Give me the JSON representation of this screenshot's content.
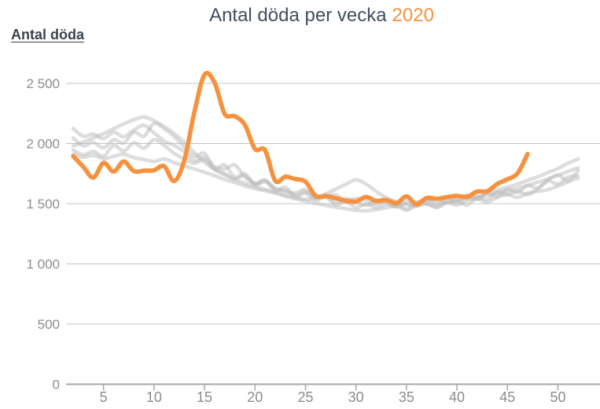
{
  "header": {
    "title_prefix": "Antal döda per vecka",
    "title_year": "2020"
  },
  "colors": {
    "accent_orange": "#F6913E",
    "reference_gray": "#BBBBBB",
    "title_text": "#424E5C",
    "axis_text": "#8C8C8C",
    "gridline": "#C4C4C4",
    "axis_line": "#A8A8A8",
    "background": "#FFFFFF"
  },
  "chart_data": {
    "type": "line",
    "title": "Antal döda per vecka 2020",
    "ylabel": "Antal döda",
    "xlabel": "",
    "legend": "none",
    "grid": "horizontal",
    "x_unit": "vecka",
    "xlim": [
      1,
      53
    ],
    "ylim": [
      0,
      2650
    ],
    "x_ticks": [
      5,
      10,
      15,
      20,
      25,
      30,
      35,
      40,
      45,
      50
    ],
    "y_ticks": [
      {
        "value": 0,
        "label": "0"
      },
      {
        "value": 500,
        "label": "500"
      },
      {
        "value": 1000,
        "label": "1 000"
      },
      {
        "value": 1500,
        "label": "1 500"
      },
      {
        "value": 2000,
        "label": "2 000"
      },
      {
        "value": 2500,
        "label": "2 500"
      }
    ],
    "series": [
      {
        "name": "reference-year-a",
        "role": "reference",
        "color": "#BBBBBB",
        "start_week": 2,
        "values": [
          2125,
          2060,
          2078,
          2041,
          2094,
          2057,
          2112,
          2151,
          2089,
          2021,
          1984,
          1931,
          1856,
          1887,
          1807,
          1789,
          1821,
          1722,
          1671,
          1697,
          1631,
          1608,
          1572,
          1601,
          1560,
          1563,
          1574,
          1526,
          1543,
          1529,
          1497,
          1531,
          1512,
          1457,
          1514,
          1520,
          1543,
          1510,
          1534,
          1542,
          1560,
          1535,
          1596,
          1575,
          1604,
          1575,
          1624,
          1697,
          1738,
          1692,
          1775
        ]
      },
      {
        "name": "reference-year-b",
        "role": "reference",
        "color": "#BBBBBB",
        "start_week": 2,
        "values": [
          1946,
          1908,
          1934,
          1895,
          1984,
          1938,
          2006,
          1962,
          2032,
          1985,
          1919,
          1872,
          1836,
          1862,
          1785,
          1752,
          1707,
          1731,
          1659,
          1681,
          1622,
          1605,
          1590,
          1616,
          1543,
          1568,
          1514,
          1542,
          1518,
          1487,
          1526,
          1509,
          1481,
          1532,
          1504,
          1544,
          1518,
          1552,
          1525,
          1571,
          1545,
          1585,
          1561,
          1618,
          1594,
          1653,
          1629,
          1688,
          1664,
          1720,
          1733
        ]
      },
      {
        "name": "reference-year-c",
        "role": "reference",
        "color": "#BBBBBB",
        "start_week": 2,
        "values": [
          2046,
          1982,
          2009,
          1965,
          2031,
          2004,
          2094,
          2061,
          2166,
          2123,
          2058,
          1971,
          1893,
          1919,
          1794,
          1822,
          1721,
          1749,
          1661,
          1692,
          1609,
          1637,
          1560,
          1586,
          1529,
          1553,
          1491,
          1516,
          1470,
          1499,
          1467,
          1497,
          1472,
          1502,
          1478,
          1526,
          1493,
          1534,
          1511,
          1561,
          1536,
          1594,
          1612,
          1638,
          1663,
          1694,
          1724,
          1759,
          1792,
          1836,
          1872
        ]
      },
      {
        "name": "reference-year-d",
        "role": "reference",
        "color": "#BBBBBB",
        "start_week": 2,
        "values": [
          1980,
          2011,
          2048,
          2082,
          2124,
          2163,
          2198,
          2221,
          2189,
          2142,
          2085,
          2009,
          1924,
          1847,
          1784,
          1739,
          1702,
          1671,
          1642,
          1619,
          1597,
          1572,
          1551,
          1536,
          1548,
          1581,
          1621,
          1663,
          1698,
          1664,
          1601,
          1551,
          1516,
          1496,
          1483,
          1497,
          1475,
          1511,
          1489,
          1526,
          1539,
          1514,
          1551,
          1577,
          1552,
          1589,
          1602,
          1616,
          1647,
          1681,
          1713
        ]
      },
      {
        "name": "reference-year-e",
        "role": "reference",
        "color": "#BBBBBB",
        "start_week": 2,
        "values": [
          1915,
          1886,
          1902,
          1873,
          1894,
          1911,
          1883,
          1867,
          1851,
          1872,
          1841,
          1813,
          1789,
          1761,
          1733,
          1701,
          1676,
          1648,
          1625,
          1608,
          1587,
          1563,
          1541,
          1522,
          1503,
          1487,
          1471,
          1458,
          1446,
          1441,
          1452,
          1467,
          1481,
          1446,
          1488,
          1502,
          1468,
          1508,
          1524,
          1489,
          1556,
          1571,
          1589,
          1608,
          1629,
          1652,
          1678,
          1706,
          1736,
          1768,
          1798
        ]
      },
      {
        "name": "2020",
        "role": "highlight",
        "color": "#F6913E",
        "start_week": 2,
        "values": [
          1895,
          1806,
          1717,
          1839,
          1767,
          1851,
          1771,
          1775,
          1778,
          1812,
          1688,
          1860,
          2262,
          2572,
          2506,
          2247,
          2227,
          2155,
          1955,
          1944,
          1691,
          1724,
          1705,
          1683,
          1566,
          1563,
          1546,
          1524,
          1518,
          1556,
          1523,
          1531,
          1503,
          1561,
          1496,
          1548,
          1541,
          1554,
          1565,
          1557,
          1601,
          1603,
          1664,
          1703,
          1752,
          1913
        ]
      }
    ]
  }
}
